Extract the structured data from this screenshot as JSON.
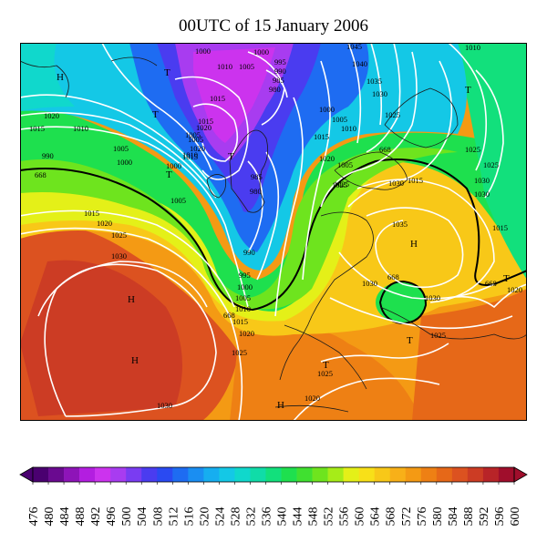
{
  "title": "00UTC of 15 January 2006",
  "colorbar": {
    "levels": [
      "476",
      "480",
      "484",
      "488",
      "492",
      "496",
      "500",
      "504",
      "508",
      "512",
      "516",
      "520",
      "524",
      "528",
      "532",
      "536",
      "540",
      "544",
      "548",
      "552",
      "556",
      "560",
      "564",
      "568",
      "572",
      "576",
      "580",
      "584",
      "588",
      "592",
      "596",
      "600"
    ],
    "colors": [
      "#4a0070",
      "#6a0a90",
      "#8e14b8",
      "#b31ee0",
      "#cc33ee",
      "#a83cf0",
      "#7a3cf2",
      "#4a3cf0",
      "#2a4af2",
      "#1e6cf2",
      "#1a8ef2",
      "#16aef0",
      "#14c8e6",
      "#10d8cc",
      "#10dca8",
      "#12e07c",
      "#1ee04e",
      "#40e030",
      "#6ee41e",
      "#a6ec18",
      "#e4f018",
      "#f8e018",
      "#f8c818",
      "#f8b018",
      "#f49a14",
      "#ee8014",
      "#e66818",
      "#dc5220",
      "#cc3c24",
      "#b82428",
      "#a00e2c"
    ]
  },
  "map_labels": {
    "isobars": [
      {
        "t": "1000",
        "k": "a1"
      },
      {
        "t": "1010",
        "k": "a2"
      },
      {
        "t": "1005",
        "k": "a3"
      },
      {
        "t": "1000",
        "k": "a4"
      },
      {
        "t": "995",
        "k": "a5"
      },
      {
        "t": "990",
        "k": "a6"
      },
      {
        "t": "985",
        "k": "a7"
      },
      {
        "t": "980",
        "k": "a8"
      },
      {
        "t": "1045",
        "k": "a9"
      },
      {
        "t": "1040",
        "k": "a10"
      },
      {
        "t": "1035",
        "k": "a11"
      },
      {
        "t": "1030",
        "k": "a12"
      },
      {
        "t": "1025",
        "k": "a13"
      },
      {
        "t": "1010",
        "k": "a14"
      },
      {
        "t": "1020",
        "k": "a15"
      },
      {
        "t": "1015",
        "k": "a16"
      },
      {
        "t": "1010",
        "k": "a17"
      },
      {
        "t": "1015",
        "k": "a18"
      },
      {
        "t": "1020",
        "k": "a19"
      },
      {
        "t": "1015",
        "k": "a20"
      },
      {
        "t": "1005",
        "k": "a21"
      },
      {
        "t": "1000",
        "k": "a22"
      },
      {
        "t": "990",
        "k": "a23"
      },
      {
        "t": "1000",
        "k": "a24"
      },
      {
        "t": "1005",
        "k": "a25"
      },
      {
        "t": "1015",
        "k": "a26"
      },
      {
        "t": "1020",
        "k": "a27"
      },
      {
        "t": "1010",
        "k": "a28"
      },
      {
        "t": "1005",
        "k": "a29"
      },
      {
        "t": "985",
        "k": "a30"
      },
      {
        "t": "980",
        "k": "a31"
      },
      {
        "t": "1000",
        "k": "a32"
      },
      {
        "t": "1005",
        "k": "a33"
      },
      {
        "t": "1015",
        "k": "a34"
      },
      {
        "t": "1020",
        "k": "a35"
      },
      {
        "t": "1025",
        "k": "a36"
      },
      {
        "t": "1010",
        "k": "a37"
      },
      {
        "t": "1005",
        "k": "a38"
      },
      {
        "t": "1015",
        "k": "a39"
      },
      {
        "t": "1020",
        "k": "a40"
      },
      {
        "t": "1025",
        "k": "a41"
      },
      {
        "t": "1030",
        "k": "a42"
      },
      {
        "t": "1030",
        "k": "a43"
      },
      {
        "t": "990",
        "k": "a44"
      },
      {
        "t": "995",
        "k": "a45"
      },
      {
        "t": "1000",
        "k": "a46"
      },
      {
        "t": "1005",
        "k": "a47"
      },
      {
        "t": "1010",
        "k": "a48"
      },
      {
        "t": "1015",
        "k": "a49"
      },
      {
        "t": "1020",
        "k": "a50"
      },
      {
        "t": "1025",
        "k": "a51"
      },
      {
        "t": "1030",
        "k": "a52"
      },
      {
        "t": "1035",
        "k": "a53"
      },
      {
        "t": "1030",
        "k": "a54"
      },
      {
        "t": "1030",
        "k": "a55"
      },
      {
        "t": "1025",
        "k": "a56"
      },
      {
        "t": "1025",
        "k": "a57"
      },
      {
        "t": "1025",
        "k": "a58"
      },
      {
        "t": "1020",
        "k": "a59"
      },
      {
        "t": "1030",
        "k": "a60"
      },
      {
        "t": "1015",
        "k": "a61"
      },
      {
        "t": "1025",
        "k": "a62"
      },
      {
        "t": "1030",
        "k": "a63"
      },
      {
        "t": "1015",
        "k": "a64"
      },
      {
        "t": "1025",
        "k": "a65"
      },
      {
        "t": "1020",
        "k": "a66"
      },
      {
        "t": "1005",
        "k": "a67"
      }
    ],
    "contour_668": "668",
    "highs": "H",
    "lows": "T"
  }
}
